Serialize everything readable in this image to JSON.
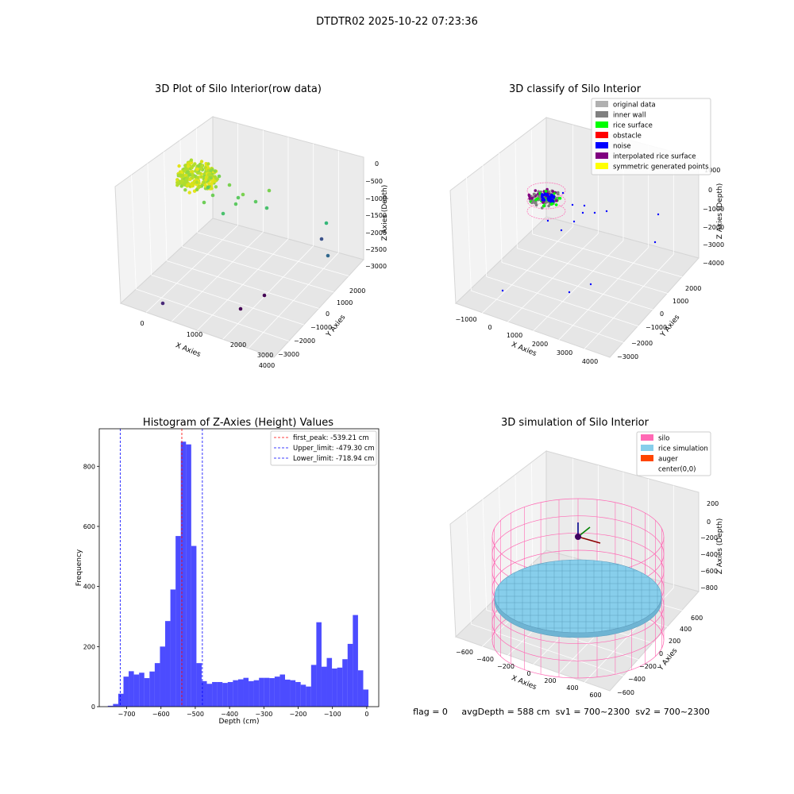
{
  "suptitle": "DTDTR02 2025-10-22 07:23:36",
  "footer": "flag = 0     avgDepth = 588 cm  sv1 = 700~2300  sv2 = 700~2300",
  "chart_data": [
    {
      "type": "scatter3d",
      "title": "3D Plot of Silo Interior(row data)",
      "xlabel": "X Axies",
      "ylabel": "Y Axies",
      "zlabel": "Z Axies (Depth)",
      "xticks": [
        "0",
        "1000",
        "2000",
        "3000",
        "4000"
      ],
      "yticks": [
        "−3000",
        "−2000",
        "−1000",
        "0",
        "1000",
        "2000"
      ],
      "zticks": [
        "0",
        "−500",
        "−1000",
        "−1500",
        "−2000",
        "−2500",
        "−3000"
      ]
    },
    {
      "type": "scatter3d",
      "title": "3D classify of Silo Interior",
      "xlabel": "X Axies",
      "ylabel": "Y Axies",
      "zlabel": "Z Axies (Depth)",
      "xticks": [
        "−1000",
        "0",
        "1000",
        "2000",
        "3000",
        "4000"
      ],
      "yticks": [
        "−3000",
        "−2000",
        "−1000",
        "0",
        "1000",
        "2000"
      ],
      "zticks": [
        "1000",
        "0",
        "−1000",
        "−2000",
        "−3000",
        "−4000"
      ],
      "legend": [
        {
          "label": "original data",
          "color": "#b0b0b0"
        },
        {
          "label": "inner wall",
          "color": "#808080"
        },
        {
          "label": "rice surface",
          "color": "#00ff00"
        },
        {
          "label": "obstacle",
          "color": "#ff0000"
        },
        {
          "label": "noise",
          "color": "#0000ff"
        },
        {
          "label": "interpolated rice surface",
          "color": "#800080"
        },
        {
          "label": "symmetric generated points",
          "color": "#ffff00"
        }
      ]
    },
    {
      "type": "bar",
      "title": "Histogram of Z-Axies (Height) Values",
      "xlabel": "Depth (cm)",
      "ylabel": "Frequency",
      "xlim": [
        -780,
        35
      ],
      "ylim": [
        0,
        925
      ],
      "xticks": [
        -700,
        -600,
        -500,
        -400,
        -300,
        -200,
        -100,
        0
      ],
      "yticks": [
        0,
        200,
        400,
        600,
        800
      ],
      "bin_start": -755,
      "bin_width": 15.2,
      "values": [
        3,
        9,
        43,
        100,
        118,
        107,
        113,
        95,
        117,
        145,
        200,
        285,
        390,
        568,
        882,
        873,
        535,
        145,
        85,
        76,
        82,
        82,
        79,
        82,
        88,
        91,
        96,
        85,
        88,
        96,
        96,
        95,
        100,
        107,
        90,
        88,
        82,
        73,
        67,
        139,
        281,
        133,
        162,
        127,
        130,
        158,
        209,
        305,
        121,
        57
      ],
      "color": "#0000ff",
      "lines": [
        {
          "label": "first_peak: -539.21 cm",
          "x": -539.21,
          "color": "#ff0000"
        },
        {
          "label": "Upper_limit: -479.30 cm",
          "x": -479.3,
          "color": "#0000ff"
        },
        {
          "label": "Lower_limit: -718.94 cm",
          "x": -718.94,
          "color": "#0000ff"
        }
      ]
    },
    {
      "type": "surface3d",
      "title": "3D simulation of Silo Interior",
      "xlabel": "X Axies",
      "ylabel": "Y Axies",
      "zlabel": "Z Axies (Depth)",
      "xticks": [
        "−600",
        "−400",
        "−200",
        "0",
        "200",
        "400",
        "600"
      ],
      "yticks": [
        "−600",
        "−400",
        "−200",
        "0",
        "200",
        "400",
        "600"
      ],
      "zticks": [
        "200",
        "0",
        "−200",
        "−400",
        "−600",
        "−800"
      ],
      "legend": [
        {
          "label": "silo",
          "color": "#ff69b4"
        },
        {
          "label": "rice simulation",
          "color": "#87ceeb"
        },
        {
          "label": "auger",
          "color": "#ff4500"
        },
        {
          "label": "center(0,0)",
          "color": ""
        }
      ]
    }
  ]
}
